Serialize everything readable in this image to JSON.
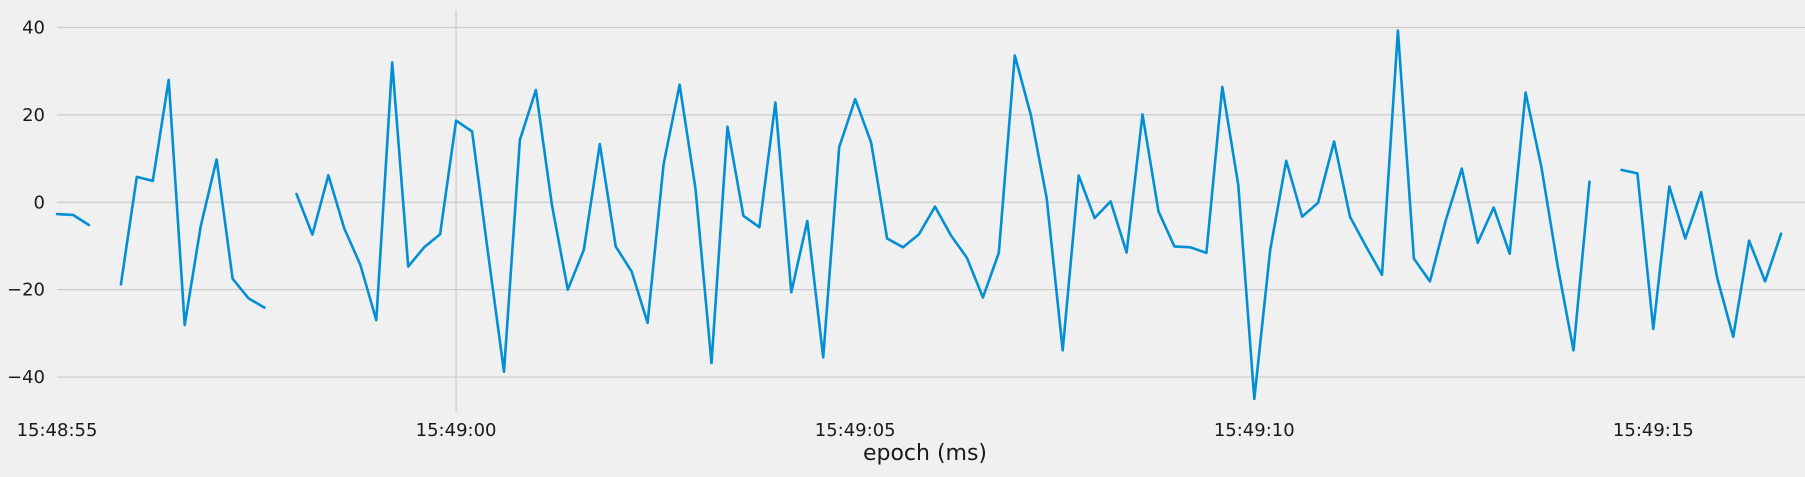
{
  "chart_data": {
    "type": "line",
    "xlabel": "epoch (ms)",
    "ylabel": "",
    "title": "",
    "x_ticks": [
      "15:48:55",
      "15:49:00",
      "15:49:05",
      "15:49:10",
      "15:49:15"
    ],
    "x_tick_values": [
      0,
      5,
      10,
      15,
      20
    ],
    "xlim": [
      0,
      21.9
    ],
    "ylim": [
      -48,
      44
    ],
    "y_ticks": [
      -40,
      -20,
      0,
      20,
      40
    ],
    "y_tick_labels": [
      "−40",
      "−20",
      "0",
      "20",
      "40"
    ],
    "grid": true,
    "series": [
      {
        "color": "#008fd5",
        "x_start": 0,
        "x_step": 0.2,
        "values": [
          -2.7,
          -2.9,
          -5.2,
          null,
          -18.8,
          5.8,
          4.9,
          28.0,
          -28.1,
          -5.5,
          9.8,
          -17.5,
          -22.0,
          -24.1,
          null,
          1.9,
          -7.4,
          6.2,
          -6.0,
          -14.3,
          -27.0,
          32.0,
          -14.7,
          -10.3,
          -7.3,
          18.7,
          16.2,
          -11.6,
          -38.8,
          14.3,
          25.7,
          -0.6,
          -20.0,
          -10.9,
          13.3,
          -10.1,
          -15.9,
          -27.6,
          8.7,
          26.9,
          3.1,
          -36.8,
          17.3,
          -3.1,
          -5.7,
          22.8,
          -20.6,
          -4.3,
          -35.5,
          12.6,
          23.6,
          13.7,
          -8.3,
          -10.3,
          -7.3,
          -1.0,
          -7.6,
          -12.7,
          -21.8,
          -11.6,
          33.6,
          20.0,
          0.9,
          -33.9,
          6.1,
          -3.6,
          0.2,
          -11.5,
          20.1,
          -2.1,
          -10.1,
          -10.3,
          -11.6,
          26.4,
          3.9,
          -45.0,
          -10.9,
          9.5,
          -3.3,
          -0.1,
          13.9,
          -3.3,
          -10.1,
          -16.6,
          39.3,
          -12.9,
          -18.1,
          -4.1,
          7.7,
          -9.3,
          -1.2,
          -11.8,
          25.1,
          7.8,
          -14.5,
          -33.9,
          4.7,
          null,
          7.4,
          6.6,
          -29.0,
          3.6,
          -8.3,
          2.3,
          -17.3,
          -30.8,
          -8.8,
          -18.1,
          -7.2
        ]
      }
    ]
  }
}
